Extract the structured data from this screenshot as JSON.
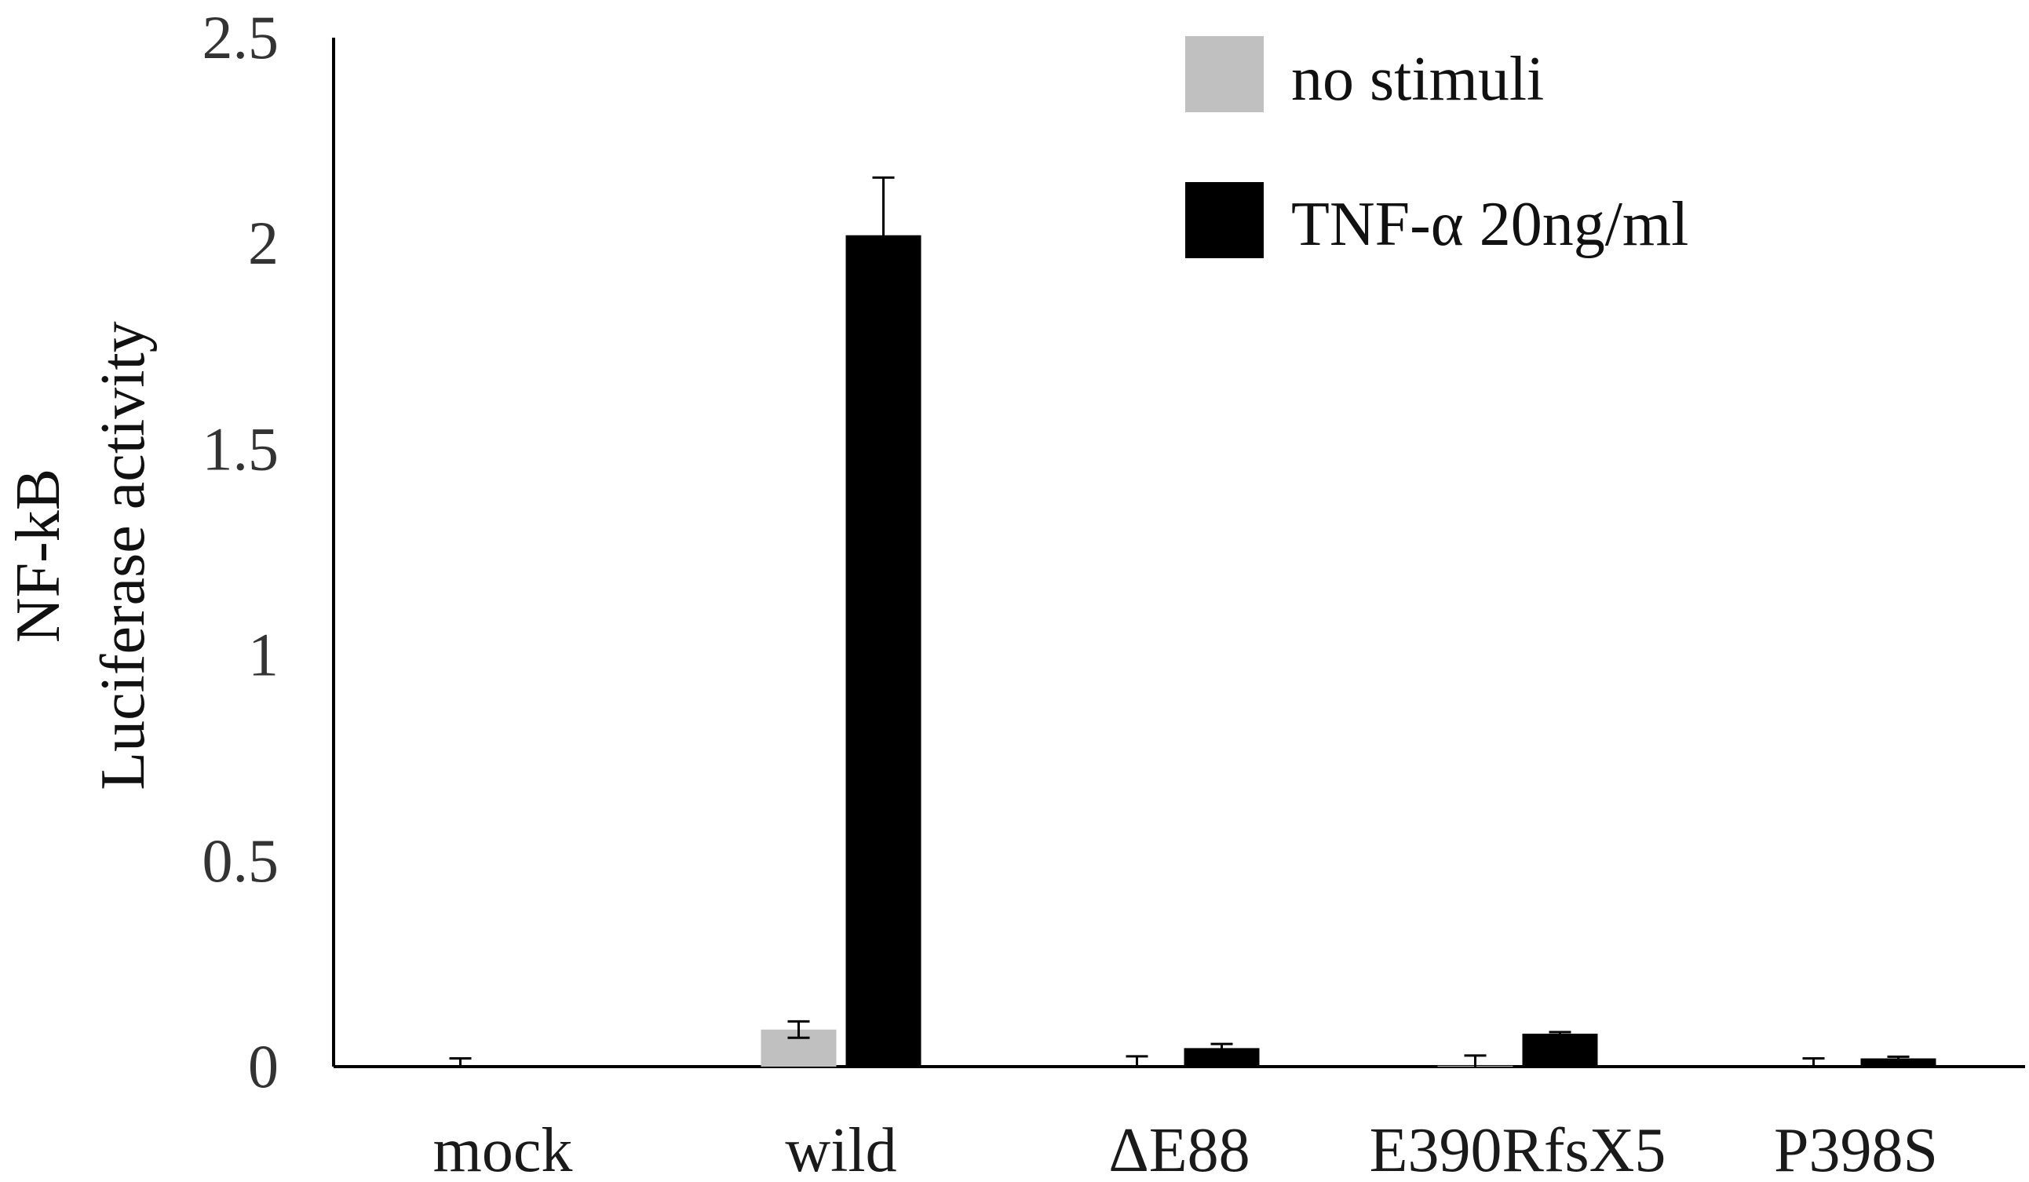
{
  "chart_data": {
    "type": "bar",
    "categories": [
      "mock",
      "wild",
      "ΔE88",
      "E390RfsX5",
      "P398S"
    ],
    "series": [
      {
        "name": "no stimuli",
        "color": "#c0c0c0",
        "values": [
          0.0,
          0.09,
          0.0,
          0.002,
          0.0
        ],
        "errors": [
          0.02,
          0.02,
          0.025,
          0.025,
          0.02
        ]
      },
      {
        "name": "TNF-α 20ng/ml",
        "color": "#000000",
        "values": [
          0.0,
          2.02,
          0.045,
          0.08,
          0.02
        ],
        "errors": [
          0.0,
          0.14,
          0.01,
          0.004,
          0.004
        ]
      }
    ],
    "ylabel_line1": "NF-kB",
    "ylabel_line2": "Luciferase activity",
    "ylim": [
      0,
      2.5
    ],
    "yticks": [
      0,
      0.5,
      1,
      1.5,
      2,
      2.5
    ],
    "ytick_labels": [
      "0",
      "0.5",
      "1",
      "1.5",
      "2",
      "2.5"
    ],
    "grid": false,
    "legend_position": "top-right"
  }
}
